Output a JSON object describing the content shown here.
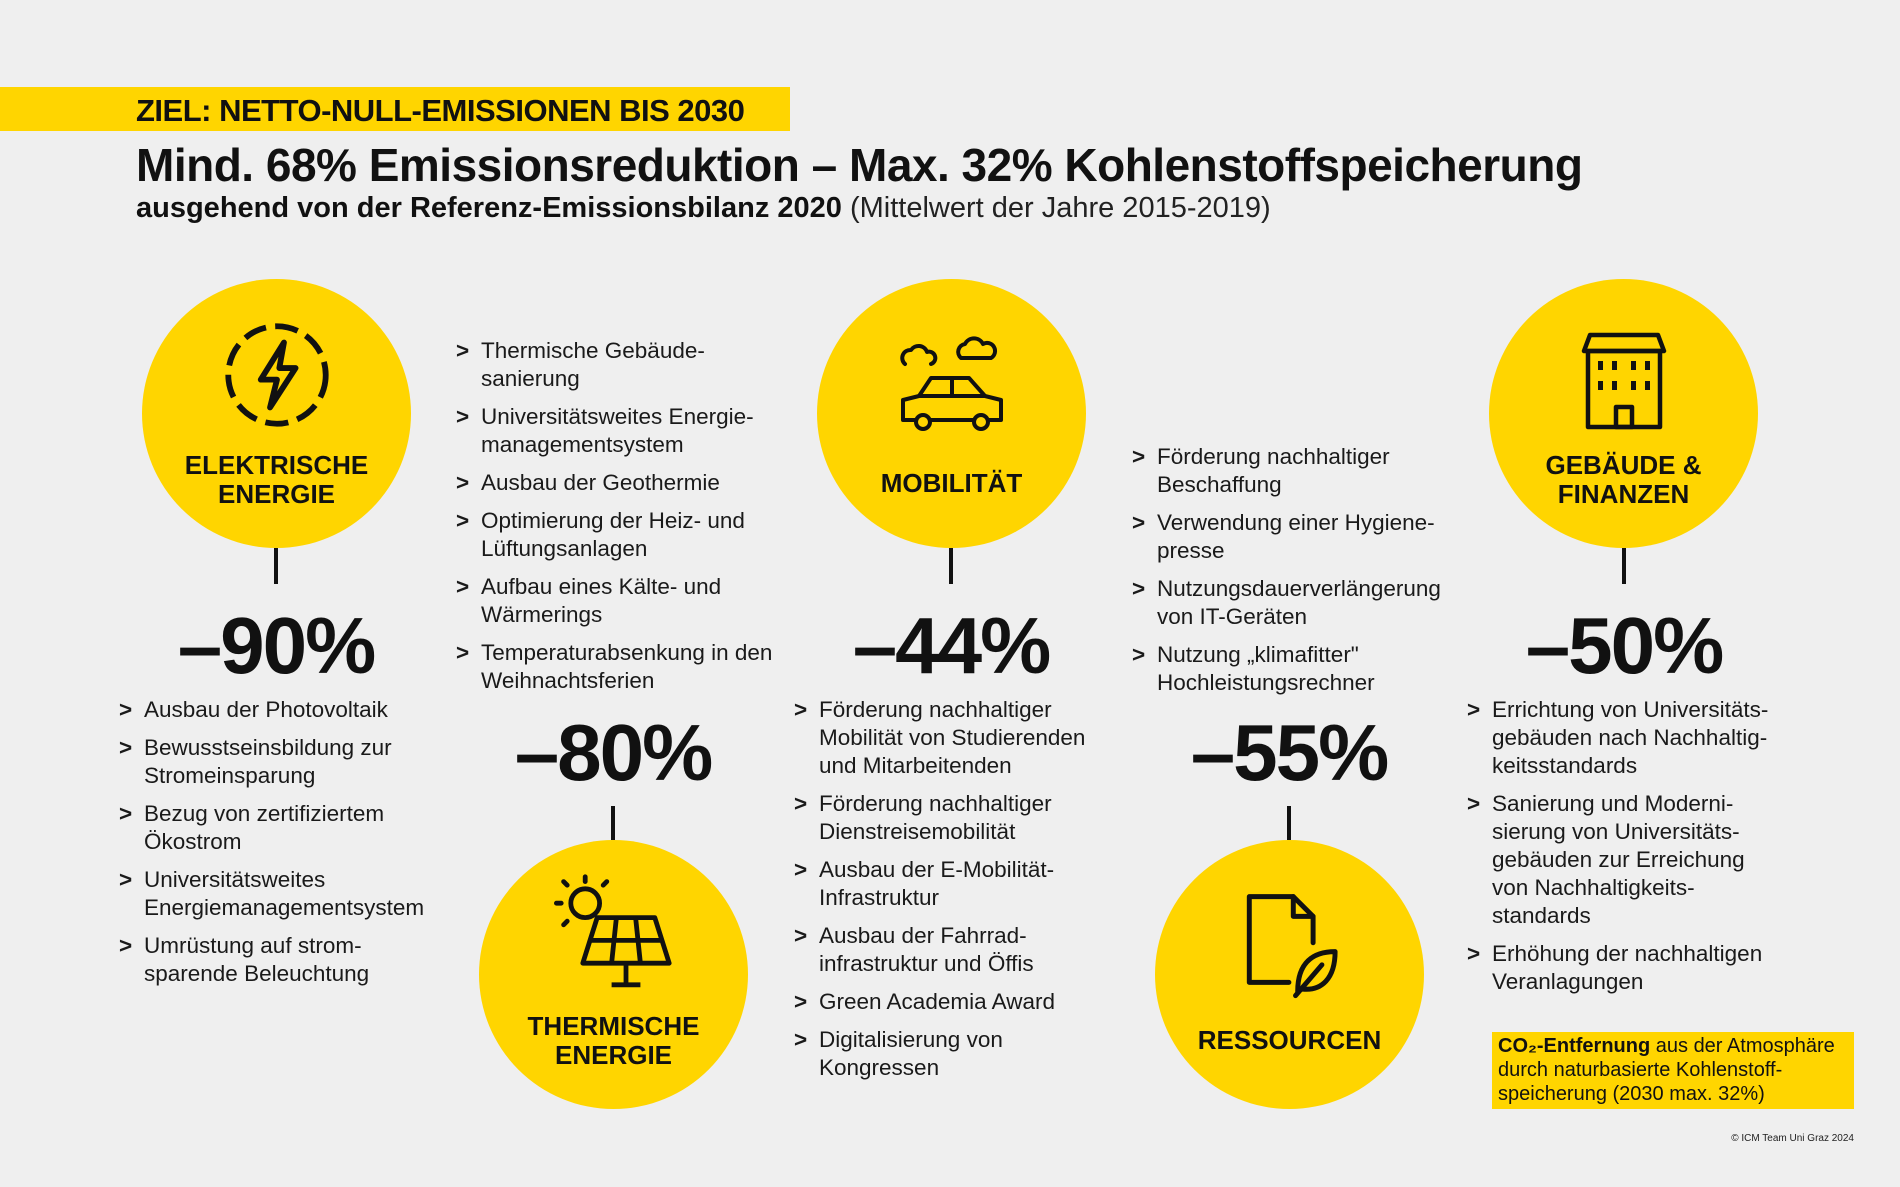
{
  "banner": "ZIEL: NETTO-NULL-EMISSIONEN BIS 2030",
  "title": "Mind. 68% Emissionsreduktion – Max. 32% Kohlenstoffspeicherung",
  "subtitle_bold": "ausgehend von der Referenz-Emissionsbilanz 2020",
  "subtitle_light": "(Mittelwert der Jahre 2015-2019)",
  "accent_color": "#ffd500",
  "sectors": [
    {
      "label_1": "ELEKTRISCHE",
      "label_2": "ENERGIE",
      "icon": "lightning-bolt-icon",
      "reduction": "–90%",
      "measures": [
        "Ausbau der Photovoltaik",
        "Bewusstseinsbildung zur Stromeinsparung",
        "Bezug von zertifiziertem Ökostrom",
        "Universitätsweites Energiemanagementsystem",
        "Umrüstung auf strom-sparende Beleuchtung"
      ]
    },
    {
      "label_1": "THERMISCHE",
      "label_2": "ENERGIE",
      "icon": "solar-panel-icon",
      "reduction": "–80%",
      "measures": [
        "Thermische Gebäude-sanierung",
        "Universitätsweites Energie-managementsystem",
        "Ausbau der Geothermie",
        "Optimierung der Heiz- und Lüftungsanlagen",
        "Aufbau eines Kälte- und Wärmerings",
        "Temperaturabsenkung in den Weihnachtsferien"
      ]
    },
    {
      "label_1": "MOBILITÄT",
      "label_2": "",
      "icon": "car-icon",
      "reduction": "–44%",
      "measures": [
        "Förderung nachhaltiger Mobilität von Studierenden und Mitarbeitenden",
        "Förderung nachhaltiger Dienstreisemobilität",
        "Ausbau der E-Mobilität-Infrastruktur",
        "Ausbau der Fahrrad-infrastruktur und Öffis",
        "Green Academia Award",
        "Digitalisierung von Kongressen"
      ]
    },
    {
      "label_1": "RESSOURCEN",
      "label_2": "",
      "icon": "document-leaf-icon",
      "reduction": "–55%",
      "measures": [
        "Förderung nachhaltiger Beschaffung",
        "Verwendung einer Hygiene-presse",
        "Nutzungsdauerverlängerung von IT-Geräten",
        "Nutzung „klimafitter\" Hochleistungsrechner"
      ]
    },
    {
      "label_1": "GEBÄUDE &",
      "label_2": "FINANZEN",
      "icon": "building-icon",
      "reduction": "–50%",
      "measures": [
        "Errichtung von Universitäts-gebäuden nach Nachhaltig-keitsstandards",
        "Sanierung und Moderni-sierung von Universitäts-gebäuden zur Erreichung von Nachhaltigkeits-standards",
        "Erhöhung der nachhaltigen Veranlagungen"
      ]
    }
  ],
  "bullet_marker": ">",
  "co2_note": {
    "bold": "CO₂-Entfernung",
    "text": " aus der Atmosphäre durch naturbasierte Kohlenstoff-speicherung (2030 max. 32%)"
  },
  "copyright": "© ICM Team Uni Graz 2024"
}
